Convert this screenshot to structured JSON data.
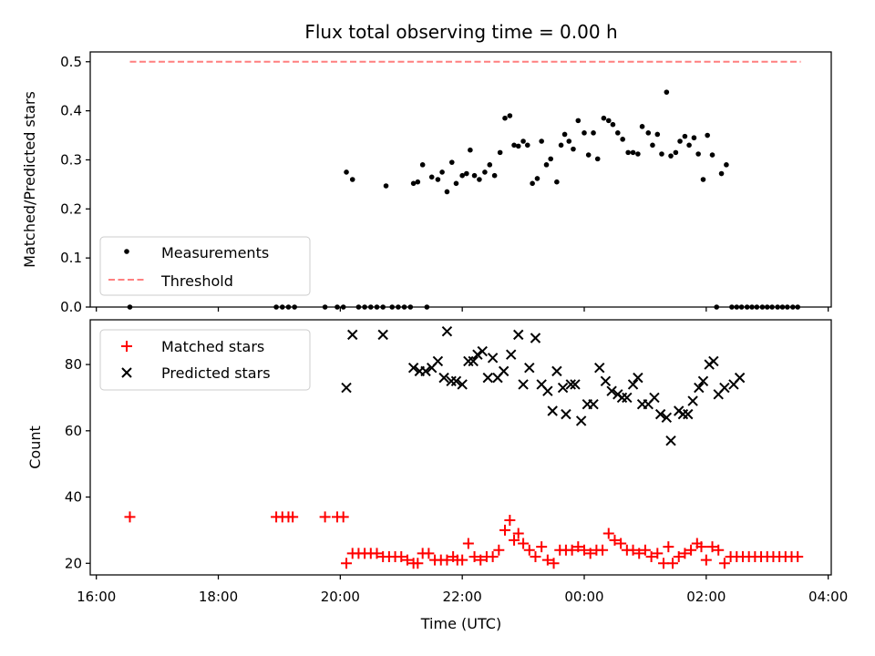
{
  "chart_data": {
    "title": "Flux total observing time = 0.00 h",
    "xlabel": "Time (UTC)",
    "x_units": "hours after 16:00 UTC",
    "xlim": [
      -0.1,
      12.05
    ],
    "x_ticks": [
      {
        "value": 0,
        "label": "16:00"
      },
      {
        "value": 2,
        "label": "18:00"
      },
      {
        "value": 4,
        "label": "20:00"
      },
      {
        "value": 6,
        "label": "22:00"
      },
      {
        "value": 8,
        "label": "00:00"
      },
      {
        "value": 10,
        "label": "02:00"
      },
      {
        "value": 12,
        "label": "04:00"
      }
    ],
    "top": {
      "type": "scatter",
      "ylabel": "Matched/Predicted stars",
      "ylim": [
        0,
        0.52
      ],
      "y_ticks": [
        0.0,
        0.1,
        0.2,
        0.3,
        0.4,
        0.5
      ],
      "y_tick_labels": [
        "0.0",
        "0.1",
        "0.2",
        "0.3",
        "0.4",
        "0.5"
      ],
      "legend": {
        "position": "lower-left",
        "measurements_label": "Measurements",
        "threshold_label": "Threshold"
      },
      "threshold": {
        "value": 0.5,
        "x_range": [
          0.55,
          11.55
        ],
        "color": "#ff7f7f"
      },
      "measurements": {
        "color": "#000000",
        "points": [
          [
            0.55,
            0
          ],
          [
            2.95,
            0
          ],
          [
            3.05,
            0
          ],
          [
            3.15,
            0
          ],
          [
            3.25,
            0
          ],
          [
            3.75,
            0
          ],
          [
            3.95,
            0
          ],
          [
            4.05,
            0
          ],
          [
            4.1,
            0.275
          ],
          [
            4.2,
            0.26
          ],
          [
            4.3,
            0
          ],
          [
            4.4,
            0
          ],
          [
            4.5,
            0
          ],
          [
            4.6,
            0
          ],
          [
            4.7,
            0
          ],
          [
            4.75,
            0.247
          ],
          [
            4.85,
            0
          ],
          [
            4.95,
            0
          ],
          [
            5.05,
            0
          ],
          [
            5.15,
            0
          ],
          [
            5.2,
            0.252
          ],
          [
            5.27,
            0.255
          ],
          [
            5.35,
            0.29
          ],
          [
            5.42,
            0
          ],
          [
            5.5,
            0.265
          ],
          [
            5.6,
            0.26
          ],
          [
            5.67,
            0.275
          ],
          [
            5.75,
            0.235
          ],
          [
            5.83,
            0.295
          ],
          [
            5.9,
            0.252
          ],
          [
            6.0,
            0.268
          ],
          [
            6.07,
            0.272
          ],
          [
            6.13,
            0.32
          ],
          [
            6.2,
            0.268
          ],
          [
            6.28,
            0.26
          ],
          [
            6.37,
            0.275
          ],
          [
            6.45,
            0.29
          ],
          [
            6.53,
            0.268
          ],
          [
            6.62,
            0.315
          ],
          [
            6.7,
            0.385
          ],
          [
            6.78,
            0.39
          ],
          [
            6.85,
            0.33
          ],
          [
            6.92,
            0.328
          ],
          [
            7.0,
            0.338
          ],
          [
            7.07,
            0.33
          ],
          [
            7.15,
            0.252
          ],
          [
            7.23,
            0.262
          ],
          [
            7.3,
            0.338
          ],
          [
            7.38,
            0.29
          ],
          [
            7.45,
            0.302
          ],
          [
            7.55,
            0.255
          ],
          [
            7.62,
            0.33
          ],
          [
            7.68,
            0.352
          ],
          [
            7.75,
            0.338
          ],
          [
            7.82,
            0.322
          ],
          [
            7.9,
            0.38
          ],
          [
            8.0,
            0.355
          ],
          [
            8.07,
            0.31
          ],
          [
            8.15,
            0.355
          ],
          [
            8.22,
            0.302
          ],
          [
            8.32,
            0.385
          ],
          [
            8.4,
            0.38
          ],
          [
            8.47,
            0.372
          ],
          [
            8.55,
            0.355
          ],
          [
            8.63,
            0.342
          ],
          [
            8.72,
            0.315
          ],
          [
            8.8,
            0.315
          ],
          [
            8.88,
            0.312
          ],
          [
            8.95,
            0.368
          ],
          [
            9.05,
            0.355
          ],
          [
            9.12,
            0.33
          ],
          [
            9.2,
            0.352
          ],
          [
            9.27,
            0.312
          ],
          [
            9.35,
            0.438
          ],
          [
            9.42,
            0.308
          ],
          [
            9.5,
            0.315
          ],
          [
            9.57,
            0.338
          ],
          [
            9.65,
            0.348
          ],
          [
            9.72,
            0.33
          ],
          [
            9.8,
            0.345
          ],
          [
            9.87,
            0.312
          ],
          [
            9.95,
            0.26
          ],
          [
            10.02,
            0.35
          ],
          [
            10.1,
            0.31
          ],
          [
            10.17,
            0
          ],
          [
            10.25,
            0.272
          ],
          [
            10.33,
            0.29
          ],
          [
            10.42,
            0
          ],
          [
            10.5,
            0
          ],
          [
            10.58,
            0
          ],
          [
            10.67,
            0
          ],
          [
            10.75,
            0
          ],
          [
            10.83,
            0
          ],
          [
            10.92,
            0
          ],
          [
            11.0,
            0
          ],
          [
            11.08,
            0
          ],
          [
            11.17,
            0
          ],
          [
            11.25,
            0
          ],
          [
            11.33,
            0
          ],
          [
            11.42,
            0
          ],
          [
            11.5,
            0
          ]
        ]
      }
    },
    "bottom": {
      "type": "scatter",
      "ylabel": "Count",
      "ylim": [
        16.5,
        93.5
      ],
      "y_ticks": [
        20,
        40,
        60,
        80
      ],
      "y_tick_labels": [
        "20",
        "40",
        "60",
        "80"
      ],
      "legend": {
        "position": "upper-left",
        "matched_label": "Matched stars",
        "predicted_label": "Predicted stars"
      },
      "matched": {
        "color": "#ff0000",
        "points": [
          [
            0.55,
            34
          ],
          [
            2.95,
            34
          ],
          [
            3.05,
            34
          ],
          [
            3.15,
            34
          ],
          [
            3.22,
            34
          ],
          [
            3.75,
            34
          ],
          [
            3.95,
            34
          ],
          [
            4.05,
            34
          ],
          [
            4.1,
            20
          ],
          [
            4.2,
            23
          ],
          [
            4.3,
            23
          ],
          [
            4.4,
            23
          ],
          [
            4.5,
            23
          ],
          [
            4.6,
            23
          ],
          [
            4.7,
            22
          ],
          [
            4.8,
            22
          ],
          [
            4.9,
            22
          ],
          [
            5.0,
            22
          ],
          [
            5.1,
            21
          ],
          [
            5.2,
            20
          ],
          [
            5.27,
            20
          ],
          [
            5.35,
            23
          ],
          [
            5.45,
            23
          ],
          [
            5.55,
            21
          ],
          [
            5.65,
            21
          ],
          [
            5.75,
            21
          ],
          [
            5.85,
            22
          ],
          [
            5.92,
            21
          ],
          [
            6.0,
            21
          ],
          [
            6.1,
            26
          ],
          [
            6.2,
            22
          ],
          [
            6.3,
            21
          ],
          [
            6.4,
            22
          ],
          [
            6.5,
            22
          ],
          [
            6.6,
            24
          ],
          [
            6.7,
            30
          ],
          [
            6.78,
            33
          ],
          [
            6.85,
            27
          ],
          [
            6.92,
            29
          ],
          [
            7.0,
            26
          ],
          [
            7.1,
            24
          ],
          [
            7.2,
            22
          ],
          [
            7.3,
            25
          ],
          [
            7.4,
            21
          ],
          [
            7.5,
            20
          ],
          [
            7.6,
            24
          ],
          [
            7.7,
            24
          ],
          [
            7.8,
            24
          ],
          [
            7.9,
            25
          ],
          [
            8.0,
            24
          ],
          [
            8.1,
            23
          ],
          [
            8.2,
            24
          ],
          [
            8.3,
            24
          ],
          [
            8.4,
            29
          ],
          [
            8.5,
            27
          ],
          [
            8.6,
            26
          ],
          [
            8.7,
            24
          ],
          [
            8.8,
            24
          ],
          [
            8.9,
            23
          ],
          [
            9.0,
            24
          ],
          [
            9.1,
            22
          ],
          [
            9.2,
            23
          ],
          [
            9.3,
            20
          ],
          [
            9.38,
            25
          ],
          [
            9.45,
            20
          ],
          [
            9.55,
            22
          ],
          [
            9.65,
            23
          ],
          [
            9.75,
            24
          ],
          [
            9.85,
            26
          ],
          [
            9.92,
            25
          ],
          [
            10.0,
            21
          ],
          [
            10.1,
            25
          ],
          [
            10.2,
            24
          ],
          [
            10.3,
            20
          ],
          [
            10.4,
            22
          ],
          [
            10.5,
            22
          ],
          [
            10.6,
            22
          ],
          [
            10.7,
            22
          ],
          [
            10.8,
            22
          ],
          [
            10.9,
            22
          ],
          [
            11.0,
            22
          ],
          [
            11.1,
            22
          ],
          [
            11.2,
            22
          ],
          [
            11.3,
            22
          ],
          [
            11.4,
            22
          ],
          [
            11.5,
            22
          ]
        ]
      },
      "predicted": {
        "color": "#000000",
        "points": [
          [
            4.1,
            73
          ],
          [
            4.2,
            89
          ],
          [
            4.7,
            89
          ],
          [
            5.2,
            79
          ],
          [
            5.3,
            78
          ],
          [
            5.4,
            78
          ],
          [
            5.5,
            79
          ],
          [
            5.6,
            81
          ],
          [
            5.7,
            76
          ],
          [
            5.75,
            90
          ],
          [
            5.82,
            75
          ],
          [
            5.9,
            75
          ],
          [
            6.0,
            74
          ],
          [
            6.1,
            81
          ],
          [
            6.18,
            81
          ],
          [
            6.25,
            83
          ],
          [
            6.33,
            84
          ],
          [
            6.42,
            76
          ],
          [
            6.5,
            82
          ],
          [
            6.58,
            76
          ],
          [
            6.68,
            78
          ],
          [
            6.8,
            83
          ],
          [
            6.92,
            89
          ],
          [
            7.0,
            74
          ],
          [
            7.1,
            79
          ],
          [
            7.2,
            88
          ],
          [
            7.3,
            74
          ],
          [
            7.4,
            72
          ],
          [
            7.48,
            66
          ],
          [
            7.55,
            78
          ],
          [
            7.65,
            73
          ],
          [
            7.7,
            65
          ],
          [
            7.78,
            74
          ],
          [
            7.85,
            74
          ],
          [
            7.95,
            63
          ],
          [
            8.05,
            68
          ],
          [
            8.15,
            68
          ],
          [
            8.25,
            79
          ],
          [
            8.35,
            75
          ],
          [
            8.45,
            72
          ],
          [
            8.55,
            71
          ],
          [
            8.62,
            70
          ],
          [
            8.7,
            70
          ],
          [
            8.8,
            74
          ],
          [
            8.88,
            76
          ],
          [
            8.95,
            68
          ],
          [
            9.05,
            68
          ],
          [
            9.15,
            70
          ],
          [
            9.25,
            65
          ],
          [
            9.35,
            64
          ],
          [
            9.42,
            57
          ],
          [
            9.55,
            66
          ],
          [
            9.62,
            65
          ],
          [
            9.7,
            65
          ],
          [
            9.78,
            69
          ],
          [
            9.88,
            73
          ],
          [
            9.95,
            75
          ],
          [
            10.05,
            80
          ],
          [
            10.12,
            81
          ],
          [
            10.2,
            71
          ],
          [
            10.3,
            73
          ],
          [
            10.45,
            74
          ],
          [
            10.55,
            76
          ]
        ]
      }
    }
  }
}
